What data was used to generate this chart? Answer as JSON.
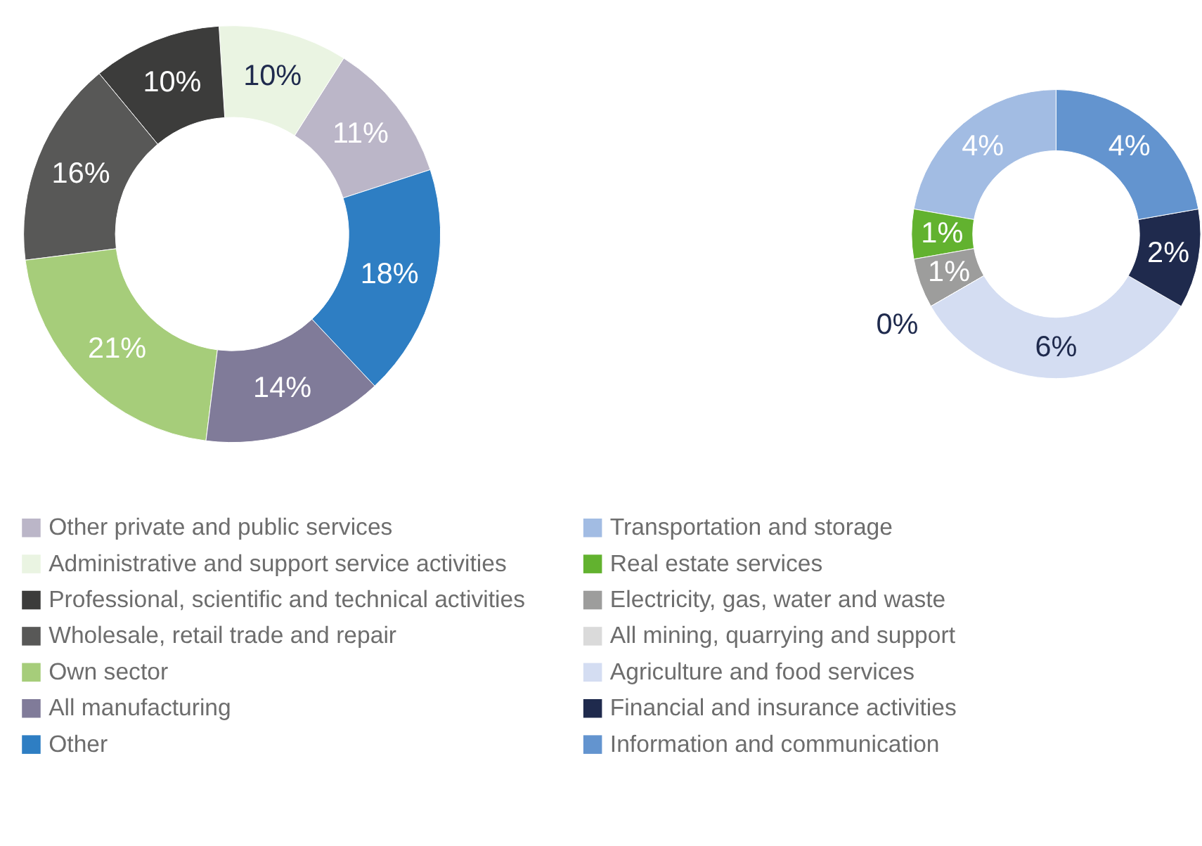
{
  "chart_data": [
    {
      "type": "donut",
      "categories": [
        "Other private and public services",
        "Administrative and support service activities",
        "Professional, scientific and technical activities",
        "Wholesale, retail trade and repair",
        "Own sector",
        "All manufacturing",
        "Other"
      ],
      "values": [
        11,
        10,
        10,
        16,
        21,
        14,
        18
      ],
      "value_labels": [
        "11%",
        "10%",
        "10%",
        "16%",
        "21%",
        "14%",
        "18%"
      ],
      "colors": [
        "#bbb6c8",
        "#eaf4e2",
        "#3c3c3b",
        "#585857",
        "#a6cd7a",
        "#807b99",
        "#2e7ec3"
      ],
      "legend": "bottom"
    },
    {
      "type": "donut",
      "categories": [
        "Transportation and storage",
        "Real estate services",
        "Electricity, gas, water and waste",
        "All mining, quarrying and support",
        "Agriculture and food services",
        "Financial and insurance activities",
        "Information and communication"
      ],
      "values": [
        4,
        1,
        1,
        0,
        6,
        2,
        4
      ],
      "value_labels": [
        "4%",
        "1%",
        "1%",
        "0%",
        "6%",
        "2%",
        "4%"
      ],
      "colors": [
        "#a2bce3",
        "#62b22f",
        "#9d9d9c",
        "#dadada",
        "#d4ddf2",
        "#1f2a4d",
        "#6394cf"
      ],
      "legend": "bottom"
    }
  ]
}
